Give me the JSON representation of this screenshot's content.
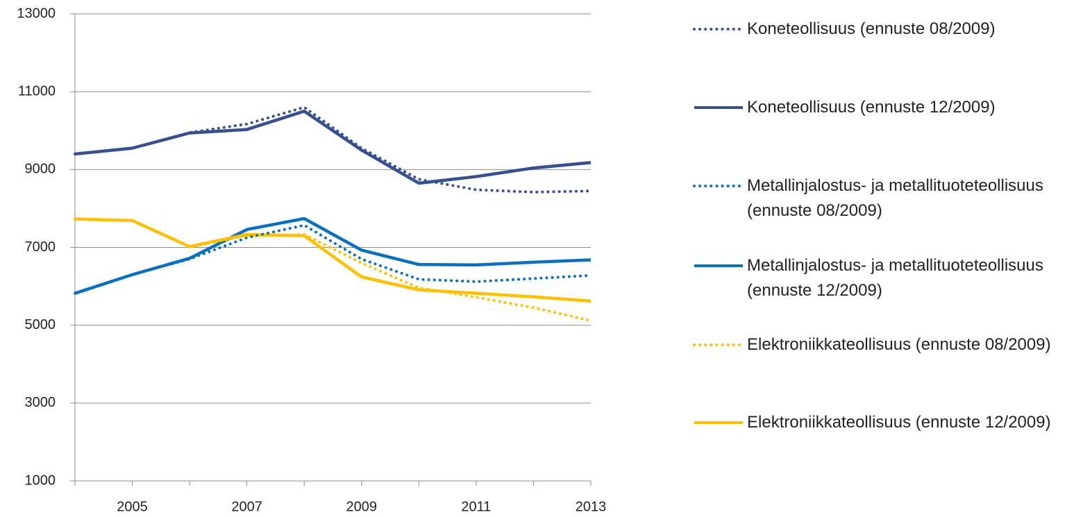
{
  "chart_data": {
    "type": "line",
    "x": [
      2004,
      2005,
      2006,
      2007,
      2008,
      2009,
      2010,
      2011,
      2012,
      2013
    ],
    "xlim": [
      2004,
      2013
    ],
    "xticks": [
      2005,
      2007,
      2009,
      2011,
      2013
    ],
    "ylim": [
      1000,
      13000
    ],
    "yticks": [
      1000,
      3000,
      5000,
      7000,
      9000,
      11000,
      13000
    ],
    "grid": true,
    "legend": "right",
    "series": [
      {
        "name": "Koneteollisuus (ennuste 08/2009)",
        "color": "#354f8f",
        "dash": "dotted",
        "values": [
          9400,
          9550,
          9950,
          10170,
          10600,
          9550,
          8750,
          8480,
          8420,
          8450
        ]
      },
      {
        "name": "Koneteollisuus (ennuste 12/2009)",
        "color": "#354f8f",
        "dash": "solid",
        "values": [
          9400,
          9550,
          9940,
          10030,
          10500,
          9500,
          8650,
          8820,
          9040,
          9180
        ]
      },
      {
        "name": "Metallinjalostus- ja metallituoteteollisuus (ennuste 08/2009)",
        "color": "#0a70bd",
        "dash": "dotted",
        "values": [
          5820,
          6300,
          6700,
          7250,
          7570,
          6700,
          6180,
          6120,
          6200,
          6280
        ]
      },
      {
        "name": "Metallinjalostus- ja metallituoteteollisuus (ennuste 12/2009)",
        "color": "#0a70bd",
        "dash": "solid",
        "values": [
          5820,
          6300,
          6720,
          7460,
          7740,
          6930,
          6560,
          6550,
          6620,
          6680
        ]
      },
      {
        "name": "Elektroniikkateollisuus (ennuste 08/2009)",
        "color": "#ffc000",
        "dash": "dotted",
        "values": [
          7730,
          7690,
          7020,
          7300,
          7330,
          6600,
          5960,
          5720,
          5450,
          5120
        ]
      },
      {
        "name": "Elektroniikkateollisuus (ennuste 12/2009)",
        "color": "#ffc000",
        "dash": "solid",
        "values": [
          7730,
          7690,
          7020,
          7330,
          7300,
          6240,
          5910,
          5820,
          5730,
          5620
        ]
      }
    ]
  }
}
